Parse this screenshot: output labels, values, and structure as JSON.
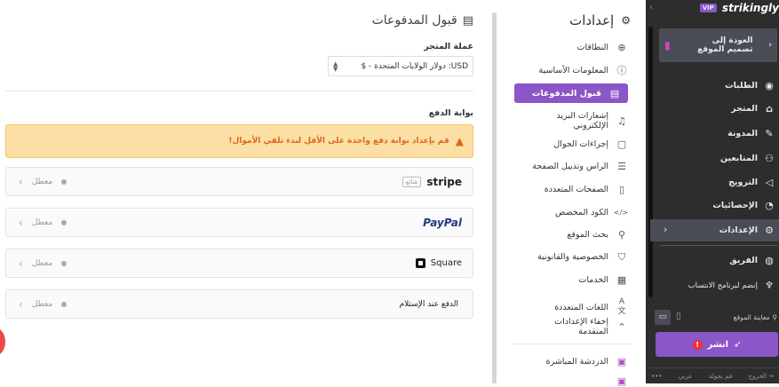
{
  "main": {
    "title": "قبول المدفوعات",
    "currency_label": "عملة المتجر",
    "currency_value": "USD: دولار الولايات المتحدة - $",
    "gateway_label": "بوابة الدفع",
    "warning": "قم بإعداد بوابة دفع واحدة على الأقل لبدء تلقي الأموال!",
    "gateways": [
      {
        "name": "stripe",
        "badge": "شائع",
        "status": "معطل"
      },
      {
        "name": "PayPal",
        "status": "معطل"
      },
      {
        "name": "Square",
        "status": "معطل"
      },
      {
        "name": "الدفع عند الإستلام",
        "status": "معطل"
      }
    ]
  },
  "nav": {
    "title": "إعدادات",
    "items": [
      {
        "label": "النطاقات",
        "icon": "globe-icon"
      },
      {
        "label": "المعلومات الأساسية",
        "icon": "info-icon"
      },
      {
        "label": "قبول المدفوعات",
        "icon": "payment-icon",
        "active": true
      },
      {
        "label": "إشعارات البريد الإلكتروني",
        "icon": "bell-icon"
      },
      {
        "label": "إجراءات الجوال",
        "icon": "mobile-icon"
      },
      {
        "label": "الراس وتذييل الصفحة",
        "icon": "header-footer-icon"
      },
      {
        "label": "الصفحات المتعددة",
        "icon": "pages-icon"
      },
      {
        "label": "الكود المخصص",
        "icon": "code-icon"
      },
      {
        "label": "بحث الموقع",
        "icon": "search-icon"
      },
      {
        "label": "الخصوصية والقانونية",
        "icon": "shield-icon"
      },
      {
        "label": "الخدمات",
        "icon": "grid-icon"
      },
      {
        "label": "اللغات المتعددة",
        "icon": "translate-icon"
      },
      {
        "label": "إخفاء الإعدادات المتقدمة",
        "icon": "chevron-up-icon"
      },
      {
        "label": "الدردشة المباشرة",
        "icon": "chat-icon"
      }
    ]
  },
  "sidebar": {
    "logo": "strikingly",
    "vip": "VIP",
    "back": "العودة إلى تصميم الموقع",
    "items": [
      {
        "label": "الطلبات",
        "icon": "dollar-icon"
      },
      {
        "label": "المتجر",
        "icon": "store-icon"
      },
      {
        "label": "المدونة",
        "icon": "pen-icon"
      },
      {
        "label": "المتابعين",
        "icon": "users-icon"
      },
      {
        "label": "الترويج",
        "icon": "megaphone-icon"
      },
      {
        "label": "الإحصائيات",
        "icon": "pie-chart-icon"
      },
      {
        "label": "الإعدادات",
        "icon": "gear-icon",
        "active": true
      },
      {
        "label": "الفريق",
        "icon": "team-icon"
      },
      {
        "label": "إنضم لبرنامج الانتساب",
        "icon": "trophy-icon"
      }
    ],
    "preview": "معاينة الموقع",
    "publish": "انشر",
    "footer": {
      "exit": "الخروج",
      "tour": "قم بجولة",
      "lang": "عربي",
      "more": "•••"
    }
  },
  "colors": {
    "accent": "#8a56c8",
    "sidebar_bg": "#2d2d2d",
    "warning_bg": "#fbdfa4",
    "warning_text": "#e0661c"
  }
}
